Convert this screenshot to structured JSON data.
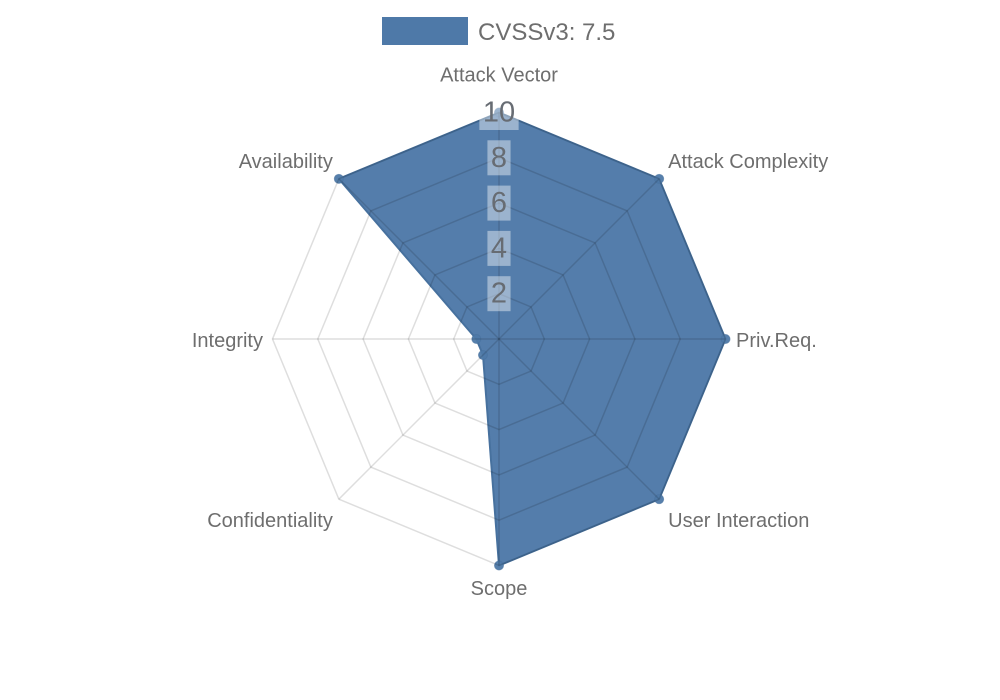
{
  "chart_data": {
    "type": "radar",
    "legend": {
      "label": "CVSSv3: 7.5",
      "position": "top"
    },
    "axes": [
      "Attack Vector",
      "Attack Complexity",
      "Priv.Req.",
      "User Interaction",
      "Scope",
      "Confidentiality",
      "Integrity",
      "Availability"
    ],
    "series": [
      {
        "name": "CVSSv3: 7.5",
        "values": [
          10,
          10,
          10,
          10,
          10,
          1,
          1,
          10
        ]
      }
    ],
    "radial_ticks": [
      2,
      4,
      6,
      8,
      10
    ],
    "rmin": 0,
    "rmax": 10,
    "start_axis": "top",
    "direction": "clockwise",
    "grid_visible": true,
    "colors": {
      "series_fill": "#4e79a8",
      "series_line": "#47719e",
      "grid_line": "rgba(0,0,0,0.13)",
      "axis_label_text": "#6e6e6e",
      "tick_text": "#676c73",
      "tick_box": "rgba(255,255,255,0.42)",
      "legend_text": "#6e6e6e",
      "background": "#ffffff"
    }
  }
}
